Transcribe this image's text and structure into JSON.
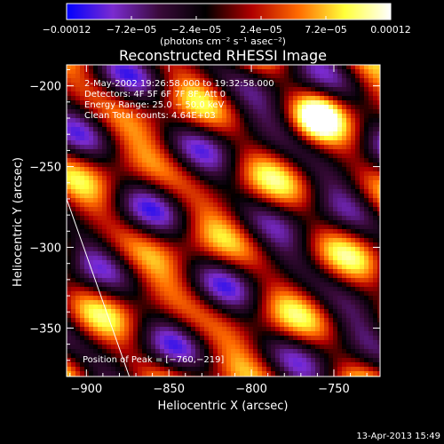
{
  "chart_data": {
    "type": "heatmap",
    "title": "Reconstructed RHESSI Image",
    "xlabel": "Heliocentric X (arcsec)",
    "ylabel": "Heliocentric Y (arcsec)",
    "xlim": [
      -912,
      -722
    ],
    "ylim": [
      -380,
      -187
    ],
    "xticks": [
      -900,
      -850,
      -800,
      -750
    ],
    "yticks": [
      -200,
      -250,
      -300,
      -350
    ],
    "xtick_labels": [
      "−900",
      "−850",
      "−800",
      "−750"
    ],
    "ytick_labels": [
      "−200",
      "−250",
      "−300",
      "−350"
    ],
    "colorbar": {
      "range": [
        -0.00012,
        0.00012
      ],
      "ticks": [
        -0.00012,
        -7.2e-05,
        -2.4e-05,
        2.4e-05,
        7.2e-05,
        0.00012
      ],
      "tick_labels": [
        "−0.00012",
        "−7.2e−05",
        "−2.4e−05",
        "2.4e−05",
        "7.2e−05",
        "0.00012"
      ],
      "units_label": "(photons cm⁻² s⁻¹ asec⁻²)",
      "colormap": [
        "#0000ff",
        "#7b2bd0",
        "#3a0a3a",
        "#000000",
        "#b00000",
        "#ff6a00",
        "#ffff3a",
        "#ffffff"
      ]
    },
    "annotations": [
      "2‑May‑2002 19:26:58.000 to 19:32:58.000",
      "Detectors: 4F 5F 6F 7F 8F, Att 0",
      "Energy Range: 25.0 − 50.0 keV",
      "Clean     Total counts: 4.64E+03"
    ],
    "peak_label": "Position of Peak = [−760,−219]",
    "peak": [
      -760,
      -219
    ],
    "limb_line": [
      [
        -912,
        -270
      ],
      [
        -874,
        -380
      ]
    ],
    "grid": false
  },
  "footer": {
    "date": "13‑Apr‑2013 15:49"
  }
}
